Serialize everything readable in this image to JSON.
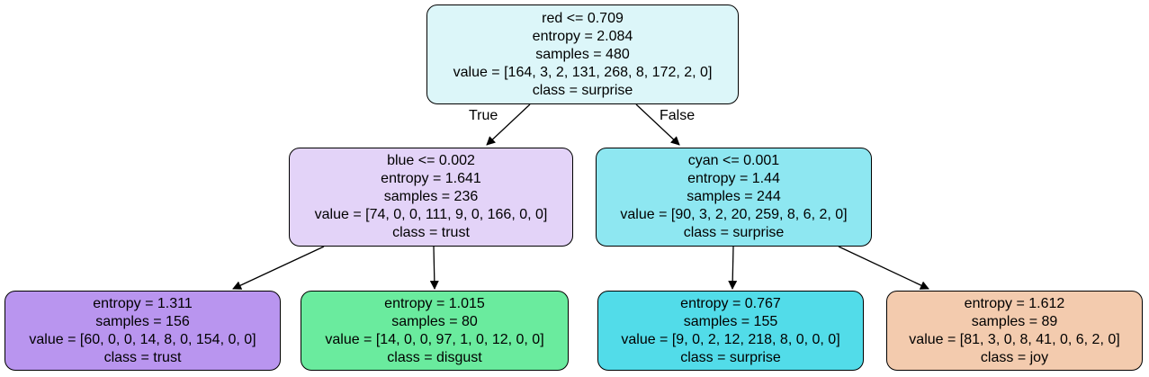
{
  "nodes": {
    "root": {
      "condition": "red <= 0.709",
      "entropy": "entropy = 2.084",
      "samples": "samples = 480",
      "value": "value = [164, 3, 2, 131, 268, 8, 172, 2, 0]",
      "class": "class = surprise",
      "color": "#dcf6f9"
    },
    "left": {
      "condition": "blue <= 0.002",
      "entropy": "entropy = 1.641",
      "samples": "samples = 236",
      "value": "value = [74, 0, 0, 111, 9, 0, 166, 0, 0]",
      "class": "class = trust",
      "color": "#e3d3f8"
    },
    "right": {
      "condition": "cyan <= 0.001",
      "entropy": "entropy = 1.44",
      "samples": "samples = 244",
      "value": "value = [90, 3, 2, 20, 259, 8, 6, 2, 0]",
      "class": "class = surprise",
      "color": "#8ee7f1"
    },
    "left_left": {
      "entropy": "entropy = 1.311",
      "samples": "samples = 156",
      "value": "value = [60, 0, 0, 14, 8, 0, 154, 0, 0]",
      "class": "class = trust",
      "color": "#b995ef"
    },
    "left_right": {
      "entropy": "entropy = 1.015",
      "samples": "samples = 80",
      "value": "value = [14, 0, 0, 97, 1, 0, 12, 0, 0]",
      "class": "class = disgust",
      "color": "#6aeb9e"
    },
    "right_left": {
      "entropy": "entropy = 0.767",
      "samples": "samples = 155",
      "value": "value = [9, 0, 2, 12, 218, 8, 0, 0, 0]",
      "class": "class = surprise",
      "color": "#52dce9"
    },
    "right_right": {
      "entropy": "entropy = 1.612",
      "samples": "samples = 89",
      "value": "value = [81, 3, 0, 8, 41, 0, 6, 2, 0]",
      "class": "class = joy",
      "color": "#f3cbae"
    }
  },
  "edge_labels": {
    "true_label": "True",
    "false_label": "False"
  }
}
